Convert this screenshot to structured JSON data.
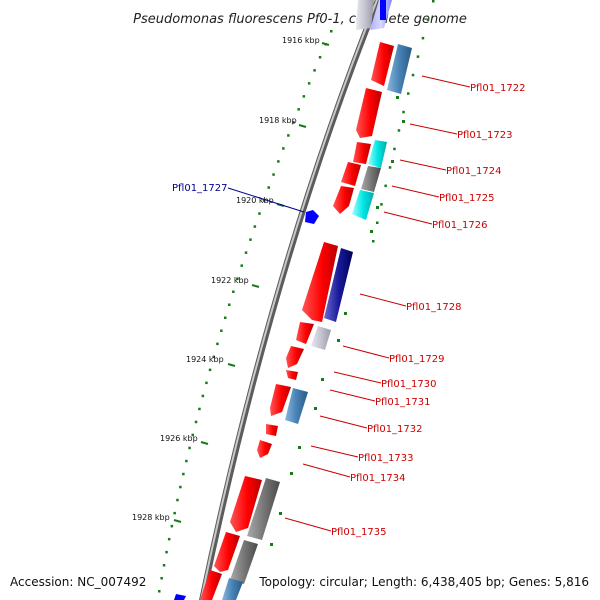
{
  "title": "Pseudomonas fluorescens Pf0-1, complete genome",
  "footer": {
    "accession": "Accession: NC_007492",
    "summary": "Topology: circular; Length: 6,438,405 bp; Genes: 5,816"
  },
  "kbp_ticks": [
    "1916 kbp",
    "1918 kbp",
    "1920 kbp",
    "1922 kbp",
    "1924 kbp",
    "1926 kbp",
    "1928 kbp"
  ],
  "gene_labels": [
    {
      "name": "Pfl01_1722",
      "color": "#cc0000"
    },
    {
      "name": "Pfl01_1723",
      "color": "#cc0000"
    },
    {
      "name": "Pfl01_1724",
      "color": "#cc0000"
    },
    {
      "name": "Pfl01_1725",
      "color": "#cc0000"
    },
    {
      "name": "Pfl01_1726",
      "color": "#cc0000"
    },
    {
      "name": "Pfl01_1727",
      "color": "#00008b"
    },
    {
      "name": "Pfl01_1728",
      "color": "#cc0000"
    },
    {
      "name": "Pfl01_1729",
      "color": "#cc0000"
    },
    {
      "name": "Pfl01_1730",
      "color": "#cc0000"
    },
    {
      "name": "Pfl01_1731",
      "color": "#cc0000"
    },
    {
      "name": "Pfl01_1732",
      "color": "#cc0000"
    },
    {
      "name": "Pfl01_1733",
      "color": "#cc0000"
    },
    {
      "name": "Pfl01_1734",
      "color": "#cc0000"
    },
    {
      "name": "Pfl01_1735",
      "color": "#cc0000"
    }
  ],
  "colors": {
    "cds": "#ff0000",
    "backbone": "#8a8a8a",
    "tick": "#1a7a1a",
    "steel": "#4682b4",
    "cyan": "#00e0e0",
    "gray": "#777777",
    "navy": "#000080",
    "blue": "#0000ff"
  }
}
